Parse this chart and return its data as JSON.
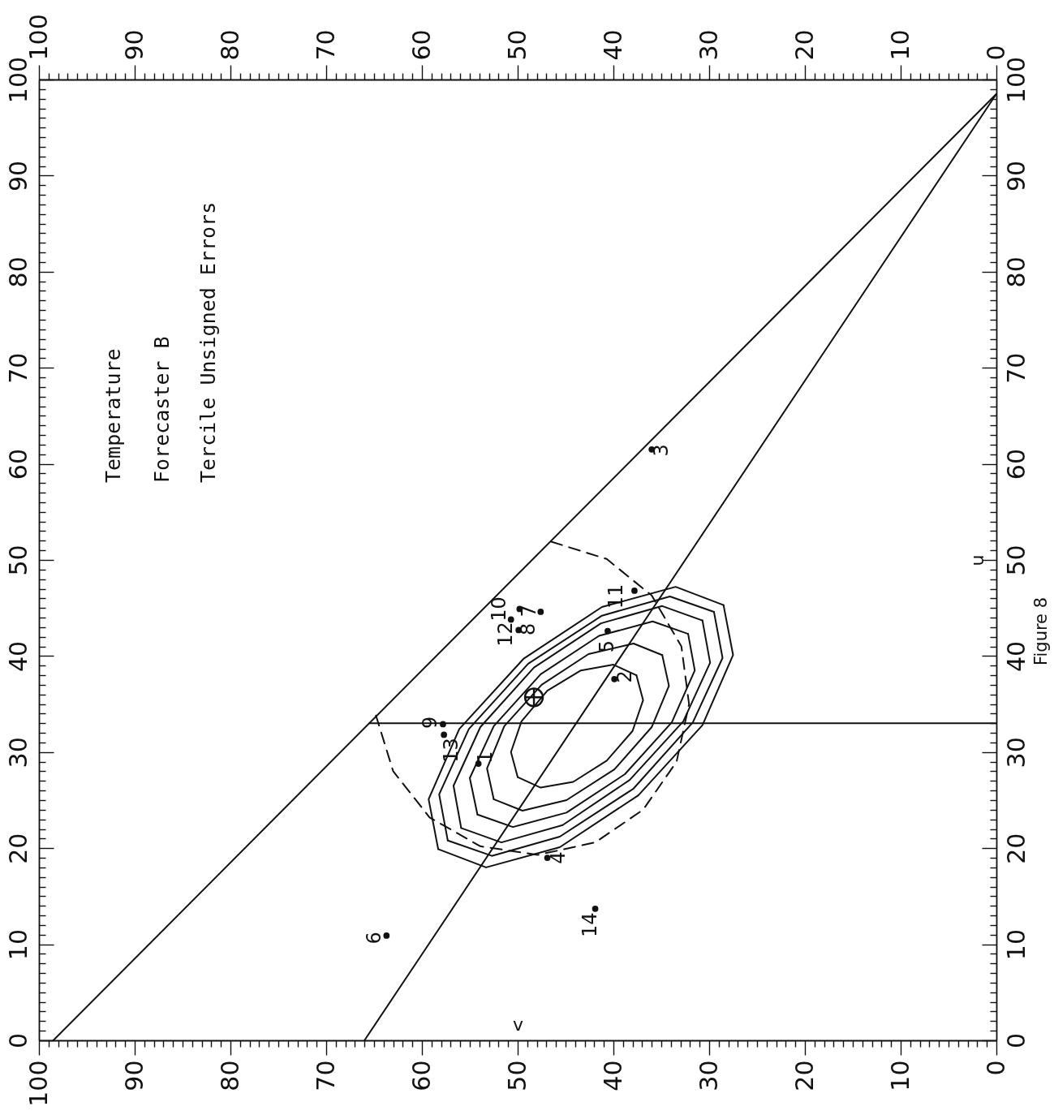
{
  "chart_data": {
    "type": "scatter",
    "title": "Temperature",
    "subtitle": "Forecaster B",
    "xlabel": "v",
    "y2label": "u",
    "annotations": [
      "Tercile Unsigned Errors",
      "Figure 8",
      {
        "text": "1",
        "x": 54.1,
        "y": 28.8
      },
      {
        "text": "2",
        "x": 39.9,
        "y": 37.6
      },
      {
        "text": "3",
        "x": 36.0,
        "y": 61.5
      },
      {
        "text": "4",
        "x": 46.9,
        "y": 19.0
      },
      {
        "text": "5",
        "x": 40.6,
        "y": 42.6
      },
      {
        "text": "6",
        "x": 63.7,
        "y": 10.9
      },
      {
        "text": "7",
        "x": 47.6,
        "y": 44.6
      },
      {
        "text": "8",
        "x": 49.9,
        "y": 42.7
      },
      {
        "text": "9",
        "x": 57.8,
        "y": 32.9
      },
      {
        "text": "10",
        "x": 49.8,
        "y": 44.9
      },
      {
        "text": "11",
        "x": 37.8,
        "y": 46.8
      },
      {
        "text": "12",
        "x": 50.7,
        "y": 43.8
      },
      {
        "text": "13",
        "x": 57.7,
        "y": 31.8
      },
      {
        "text": "14",
        "x": 41.9,
        "y": 13.7
      }
    ],
    "xlim": [
      100,
      0
    ],
    "ylim": [
      0,
      100
    ],
    "x2lim": [
      100,
      0
    ],
    "y2lim": [
      0,
      100
    ],
    "xticks": [
      0,
      {
        "value": 1,
        "label": null
      },
      {
        "value": 2,
        "label": null
      },
      {
        "value": 3,
        "label": null
      },
      {
        "value": 4,
        "label": null
      },
      {
        "value": 5,
        "label": null
      },
      {
        "value": 6,
        "label": null
      },
      {
        "value": 7,
        "label": null
      },
      {
        "value": 8,
        "label": null
      },
      {
        "value": 9,
        "label": null
      },
      10,
      {
        "value": 11,
        "label": null
      },
      {
        "value": 12,
        "label": null
      },
      {
        "value": 13,
        "label": null
      },
      {
        "value": 14,
        "label": null
      },
      {
        "value": 15,
        "label": null
      },
      {
        "value": 16,
        "label": null
      },
      {
        "value": 17,
        "label": null
      },
      {
        "value": 18,
        "label": null
      },
      {
        "value": 19,
        "label": null
      },
      20,
      {
        "value": 21,
        "label": null
      },
      {
        "value": 22,
        "label": null
      },
      {
        "value": 23,
        "label": null
      },
      {
        "value": 24,
        "label": null
      },
      {
        "value": 25,
        "label": null
      },
      {
        "value": 26,
        "label": null
      },
      {
        "value": 27,
        "label": null
      },
      {
        "value": 28,
        "label": null
      },
      {
        "value": 29,
        "label": null
      },
      30,
      {
        "value": 31,
        "label": null
      },
      {
        "value": 32,
        "label": null
      },
      {
        "value": 33,
        "label": null
      },
      {
        "value": 34,
        "label": null
      },
      {
        "value": 35,
        "label": null
      },
      {
        "value": 36,
        "label": null
      },
      {
        "value": 37,
        "label": null
      },
      {
        "value": 38,
        "label": null
      },
      {
        "value": 39,
        "label": null
      },
      40,
      {
        "value": 41,
        "label": null
      },
      {
        "value": 42,
        "label": null
      },
      {
        "value": 43,
        "label": null
      },
      {
        "value": 44,
        "label": null
      },
      {
        "value": 45,
        "label": null
      },
      {
        "value": 46,
        "label": null
      },
      {
        "value": 47,
        "label": null
      },
      {
        "value": 48,
        "label": null
      },
      {
        "value": 49,
        "label": null
      },
      50,
      {
        "value": 51,
        "label": null
      },
      {
        "value": 52,
        "label": null
      },
      {
        "value": 53,
        "label": null
      },
      {
        "value": 54,
        "label": null
      },
      {
        "value": 55,
        "label": null
      },
      {
        "value": 56,
        "label": null
      },
      {
        "value": 57,
        "label": null
      },
      {
        "value": 58,
        "label": null
      },
      {
        "value": 59,
        "label": null
      },
      60,
      {
        "value": 61,
        "label": null
      },
      {
        "value": 62,
        "label": null
      },
      {
        "value": 63,
        "label": null
      },
      {
        "value": 64,
        "label": null
      },
      {
        "value": 65,
        "label": null
      },
      {
        "value": 66,
        "label": null
      },
      {
        "value": 67,
        "label": null
      },
      {
        "value": 68,
        "label": null
      },
      {
        "value": 69,
        "label": null
      },
      70,
      {
        "value": 71,
        "label": null
      },
      {
        "value": 72,
        "label": null
      },
      {
        "value": 73,
        "label": null
      },
      {
        "value": 74,
        "label": null
      },
      {
        "value": 75,
        "label": null
      },
      {
        "value": 76,
        "label": null
      },
      {
        "value": 77,
        "label": null
      },
      {
        "value": 78,
        "label": null
      },
      {
        "value": 79,
        "label": null
      },
      80,
      {
        "value": 81,
        "label": null
      },
      {
        "value": 82,
        "label": null
      },
      {
        "value": 83,
        "label": null
      },
      {
        "value": 84,
        "label": null
      },
      {
        "value": 85,
        "label": null
      },
      {
        "value": 86,
        "label": null
      },
      {
        "value": 87,
        "label": null
      },
      {
        "value": 88,
        "label": null
      },
      {
        "value": 89,
        "label": null
      },
      90,
      {
        "value": 91,
        "label": null
      },
      {
        "value": 92,
        "label": null
      },
      {
        "value": 93,
        "label": null
      },
      {
        "value": 94,
        "label": null
      },
      {
        "value": 95,
        "label": null
      },
      {
        "value": 96,
        "label": null
      },
      {
        "value": 97,
        "label": null
      },
      {
        "value": 98,
        "label": null
      },
      {
        "value": 99,
        "label": null
      },
      100
    ],
    "yticks": [
      0,
      {
        "value": 1,
        "label": null
      },
      {
        "value": 2,
        "label": null
      },
      {
        "value": 3,
        "label": null
      },
      {
        "value": 4,
        "label": null
      },
      {
        "value": 5,
        "label": null
      },
      {
        "value": 6,
        "label": null
      },
      {
        "value": 7,
        "label": null
      },
      {
        "value": 8,
        "label": null
      },
      {
        "value": 9,
        "label": null
      },
      10,
      {
        "value": 11,
        "label": null
      },
      {
        "value": 12,
        "label": null
      },
      {
        "value": 13,
        "label": null
      },
      {
        "value": 14,
        "label": null
      },
      {
        "value": 15,
        "label": null
      },
      {
        "value": 16,
        "label": null
      },
      {
        "value": 17,
        "label": null
      },
      {
        "value": 18,
        "label": null
      },
      {
        "value": 19,
        "label": null
      },
      20,
      {
        "value": 21,
        "label": null
      },
      {
        "value": 22,
        "label": null
      },
      {
        "value": 23,
        "label": null
      },
      {
        "value": 24,
        "label": null
      },
      {
        "value": 25,
        "label": null
      },
      {
        "value": 26,
        "label": null
      },
      {
        "value": 27,
        "label": null
      },
      {
        "value": 28,
        "label": null
      },
      {
        "value": 29,
        "label": null
      },
      30,
      {
        "value": 31,
        "label": null
      },
      {
        "value": 32,
        "label": null
      },
      {
        "value": 33,
        "label": null
      },
      {
        "value": 34,
        "label": null
      },
      {
        "value": 35,
        "label": null
      },
      {
        "value": 36,
        "label": null
      },
      {
        "value": 37,
        "label": null
      },
      {
        "value": 38,
        "label": null
      },
      {
        "value": 39,
        "label": null
      },
      40,
      {
        "value": 41,
        "label": null
      },
      {
        "value": 42,
        "label": null
      },
      {
        "value": 43,
        "label": null
      },
      {
        "value": 44,
        "label": null
      },
      {
        "value": 45,
        "label": null
      },
      {
        "value": 46,
        "label": null
      },
      {
        "value": 47,
        "label": null
      },
      {
        "value": 48,
        "label": null
      },
      {
        "value": 49,
        "label": null
      },
      50,
      {
        "value": 51,
        "label": null
      },
      {
        "value": 52,
        "label": null
      },
      {
        "value": 53,
        "label": null
      },
      {
        "value": 54,
        "label": null
      },
      {
        "value": 55,
        "label": null
      },
      {
        "value": 56,
        "label": null
      },
      {
        "value": 57,
        "label": null
      },
      {
        "value": 58,
        "label": null
      },
      {
        "value": 59,
        "label": null
      },
      60,
      {
        "value": 61,
        "label": null
      },
      {
        "value": 62,
        "label": null
      },
      {
        "value": 63,
        "label": null
      },
      {
        "value": 64,
        "label": null
      },
      {
        "value": 65,
        "label": null
      },
      {
        "value": 66,
        "label": null
      },
      {
        "value": 67,
        "label": null
      },
      {
        "value": 68,
        "label": null
      },
      {
        "value": 69,
        "label": null
      },
      70,
      {
        "value": 71,
        "label": null
      },
      {
        "value": 72,
        "label": null
      },
      {
        "value": 73,
        "label": null
      },
      {
        "value": 74,
        "label": null
      },
      {
        "value": 75,
        "label": null
      },
      {
        "value": 76,
        "label": null
      },
      {
        "value": 77,
        "label": null
      },
      {
        "value": 78,
        "label": null
      },
      {
        "value": 79,
        "label": null
      },
      80,
      {
        "value": 81,
        "label": null
      },
      {
        "value": 82,
        "label": null
      },
      {
        "value": 83,
        "label": null
      },
      {
        "value": 84,
        "label": null
      },
      {
        "value": 85,
        "label": null
      },
      {
        "value": 86,
        "label": null
      },
      {
        "value": 87,
        "label": null
      },
      {
        "value": 88,
        "label": null
      },
      {
        "value": 89,
        "label": null
      },
      90,
      {
        "value": 91,
        "label": null
      },
      {
        "value": 92,
        "label": null
      },
      {
        "value": 93,
        "label": null
      },
      {
        "value": 94,
        "label": null
      },
      {
        "value": 95,
        "label": null
      },
      {
        "value": 96,
        "label": null
      },
      {
        "value": 97,
        "label": null
      },
      {
        "value": 98,
        "label": null
      },
      {
        "value": 99,
        "label": null
      },
      100
    ],
    "x2ticks": [
      0,
      {
        "value": 1,
        "label": null
      },
      {
        "value": 2,
        "label": null
      },
      {
        "value": 3,
        "label": null
      },
      {
        "value": 4,
        "label": null
      },
      {
        "value": 5,
        "label": null
      },
      {
        "value": 6,
        "label": null
      },
      {
        "value": 7,
        "label": null
      },
      {
        "value": 8,
        "label": null
      },
      {
        "value": 9,
        "label": null
      },
      10,
      {
        "value": 11,
        "label": null
      },
      {
        "value": 12,
        "label": null
      },
      {
        "value": 13,
        "label": null
      },
      {
        "value": 14,
        "label": null
      },
      {
        "value": 15,
        "label": null
      },
      {
        "value": 16,
        "label": null
      },
      {
        "value": 17,
        "label": null
      },
      {
        "value": 18,
        "label": null
      },
      {
        "value": 19,
        "label": null
      },
      20,
      {
        "value": 21,
        "label": null
      },
      {
        "value": 22,
        "label": null
      },
      {
        "value": 23,
        "label": null
      },
      {
        "value": 24,
        "label": null
      },
      {
        "value": 25,
        "label": null
      },
      {
        "value": 26,
        "label": null
      },
      {
        "value": 27,
        "label": null
      },
      {
        "value": 28,
        "label": null
      },
      {
        "value": 29,
        "label": null
      },
      30,
      {
        "value": 31,
        "label": null
      },
      {
        "value": 32,
        "label": null
      },
      {
        "value": 33,
        "label": null
      },
      {
        "value": 34,
        "label": null
      },
      {
        "value": 35,
        "label": null
      },
      {
        "value": 36,
        "label": null
      },
      {
        "value": 37,
        "label": null
      },
      {
        "value": 38,
        "label": null
      },
      {
        "value": 39,
        "label": null
      },
      40,
      {
        "value": 41,
        "label": null
      },
      {
        "value": 42,
        "label": null
      },
      {
        "value": 43,
        "label": null
      },
      {
        "value": 44,
        "label": null
      },
      {
        "value": 45,
        "label": null
      },
      {
        "value": 46,
        "label": null
      },
      {
        "value": 47,
        "label": null
      },
      {
        "value": 48,
        "label": null
      },
      {
        "value": 49,
        "label": null
      },
      50,
      {
        "value": 51,
        "label": null
      },
      {
        "value": 52,
        "label": null
      },
      {
        "value": 53,
        "label": null
      },
      {
        "value": 54,
        "label": null
      },
      {
        "value": 55,
        "label": null
      },
      {
        "value": 56,
        "label": null
      },
      {
        "value": 57,
        "label": null
      },
      {
        "value": 58,
        "label": null
      },
      {
        "value": 59,
        "label": null
      },
      60,
      {
        "value": 61,
        "label": null
      },
      {
        "value": 62,
        "label": null
      },
      {
        "value": 63,
        "label": null
      },
      {
        "value": 64,
        "label": null
      },
      {
        "value": 65,
        "label": null
      },
      {
        "value": 66,
        "label": null
      },
      {
        "value": 67,
        "label": null
      },
      {
        "value": 68,
        "label": null
      },
      {
        "value": 69,
        "label": null
      },
      70,
      {
        "value": 71,
        "label": null
      },
      {
        "value": 72,
        "label": null
      },
      {
        "value": 73,
        "label": null
      },
      {
        "value": 74,
        "label": null
      },
      {
        "value": 75,
        "label": null
      },
      {
        "value": 76,
        "label": null
      },
      {
        "value": 77,
        "label": null
      },
      {
        "value": 78,
        "label": null
      },
      {
        "value": 79,
        "label": null
      },
      80,
      {
        "value": 81,
        "label": null
      },
      {
        "value": 82,
        "label": null
      },
      {
        "value": 83,
        "label": null
      },
      {
        "value": 84,
        "label": null
      },
      {
        "value": 85,
        "label": null
      },
      {
        "value": 86,
        "label": null
      },
      {
        "value": 87,
        "label": null
      },
      {
        "value": 88,
        "label": null
      },
      {
        "value": 89,
        "label": null
      },
      90,
      {
        "value": 91,
        "label": null
      },
      {
        "value": 92,
        "label": null
      },
      {
        "value": 93,
        "label": null
      },
      {
        "value": 94,
        "label": null
      },
      {
        "value": 95,
        "label": null
      },
      {
        "value": 96,
        "label": null
      },
      {
        "value": 97,
        "label": null
      },
      {
        "value": 98,
        "label": null
      },
      {
        "value": 99,
        "label": null
      },
      100
    ],
    "y2ticks": [
      0,
      {
        "value": 1,
        "label": null
      },
      {
        "value": 2,
        "label": null
      },
      {
        "value": 3,
        "label": null
      },
      {
        "value": 4,
        "label": null
      },
      {
        "value": 5,
        "label": null
      },
      {
        "value": 6,
        "label": null
      },
      {
        "value": 7,
        "label": null
      },
      {
        "value": 8,
        "label": null
      },
      {
        "value": 9,
        "label": null
      },
      10,
      {
        "value": 11,
        "label": null
      },
      {
        "value": 12,
        "label": null
      },
      {
        "value": 13,
        "label": null
      },
      {
        "value": 14,
        "label": null
      },
      {
        "value": 15,
        "label": null
      },
      {
        "value": 16,
        "label": null
      },
      {
        "value": 17,
        "label": null
      },
      {
        "value": 18,
        "label": null
      },
      {
        "value": 19,
        "label": null
      },
      20,
      {
        "value": 21,
        "label": null
      },
      {
        "value": 22,
        "label": null
      },
      {
        "value": 23,
        "label": null
      },
      {
        "value": 24,
        "label": null
      },
      {
        "value": 25,
        "label": null
      },
      {
        "value": 26,
        "label": null
      },
      {
        "value": 27,
        "label": null
      },
      {
        "value": 28,
        "label": null
      },
      {
        "value": 29,
        "label": null
      },
      30,
      {
        "value": 31,
        "label": null
      },
      {
        "value": 32,
        "label": null
      },
      {
        "value": 33,
        "label": null
      },
      {
        "value": 34,
        "label": null
      },
      {
        "value": 35,
        "label": null
      },
      {
        "value": 36,
        "label": null
      },
      {
        "value": 37,
        "label": null
      },
      {
        "value": 38,
        "label": null
      },
      {
        "value": 39,
        "label": null
      },
      40,
      {
        "value": 41,
        "label": null
      },
      {
        "value": 42,
        "label": null
      },
      {
        "value": 43,
        "label": null
      },
      {
        "value": 44,
        "label": null
      },
      {
        "value": 45,
        "label": null
      },
      {
        "value": 46,
        "label": null
      },
      {
        "value": 47,
        "label": null
      },
      {
        "value": 48,
        "label": null
      },
      {
        "value": 49,
        "label": null
      },
      50,
      {
        "value": 51,
        "label": null
      },
      {
        "value": 52,
        "label": null
      },
      {
        "value": 53,
        "label": null
      },
      {
        "value": 54,
        "label": null
      },
      {
        "value": 55,
        "label": null
      },
      {
        "value": 56,
        "label": null
      },
      {
        "value": 57,
        "label": null
      },
      {
        "value": 58,
        "label": null
      },
      {
        "value": 59,
        "label": null
      },
      60,
      {
        "value": 61,
        "label": null
      },
      {
        "value": 62,
        "label": null
      },
      {
        "value": 63,
        "label": null
      },
      {
        "value": 64,
        "label": null
      },
      {
        "value": 65,
        "label": null
      },
      {
        "value": 66,
        "label": null
      },
      {
        "value": 67,
        "label": null
      },
      {
        "value": 68,
        "label": null
      },
      {
        "value": 69,
        "label": null
      },
      70,
      {
        "value": 71,
        "label": null
      },
      {
        "value": 72,
        "label": null
      },
      {
        "value": 73,
        "label": null
      },
      {
        "value": 74,
        "label": null
      },
      {
        "value": 75,
        "label": null
      },
      {
        "value": 76,
        "label": null
      },
      {
        "value": 77,
        "label": null
      },
      {
        "value": 78,
        "label": null
      },
      {
        "value": 79,
        "label": null
      },
      80,
      {
        "value": 81,
        "label": null
      },
      {
        "value": 82,
        "label": null
      },
      {
        "value": 83,
        "label": null
      },
      {
        "value": 84,
        "label": null
      },
      {
        "value": 85,
        "label": null
      },
      {
        "value": 86,
        "label": null
      },
      {
        "value": 87,
        "label": null
      },
      {
        "value": 88,
        "label": null
      },
      {
        "value": 89,
        "label": null
      },
      90,
      {
        "value": 91,
        "label": null
      },
      {
        "value": 92,
        "label": null
      },
      {
        "value": 93,
        "label": null
      },
      {
        "value": 94,
        "label": null
      },
      {
        "value": 95,
        "label": null
      },
      {
        "value": 96,
        "label": null
      },
      {
        "value": 97,
        "label": null
      },
      {
        "value": 98,
        "label": null
      },
      {
        "value": 99,
        "label": null
      },
      100
    ],
    "series": [
      {
        "type": "line",
        "color": "#111111",
        "line_style": "solid",
        "x": [
          98.5,
          0
        ],
        "values": [
          0,
          98.5
        ]
      },
      {
        "type": "line",
        "color": "#111111",
        "line_style": "solid",
        "x": [
          66,
          0
        ],
        "values": [
          0,
          98.5
        ]
      },
      {
        "type": "line",
        "color": "#111111",
        "line_style": "solid",
        "x": [
          65.5,
          0
        ],
        "values": [
          33,
          33
        ]
      },
      {
        "type": "line",
        "color": "#111111",
        "line_style": "solid",
        "x": [
          37.6,
          40.0,
          43.4,
          46.9,
          49.6,
          50.7,
          50.0
        ],
        "values": [
          38.0,
          39.1,
          38.5,
          36.4,
          33.2,
          30.0,
          27.4
        ]
      },
      {
        "type": "line",
        "color": "#111111",
        "line_style": "solid",
        "x": [
          50.0,
          47.6,
          44.2,
          40.7,
          38.0,
          36.9,
          37.6
        ],
        "values": [
          27.4,
          26.3,
          26.9,
          29.1,
          32.2,
          35.4,
          38.0
        ]
      },
      {
        "type": "line",
        "color": "#111111",
        "line_style": "solid",
        "x": [
          34.9,
          37.9,
          42.6,
          47.5,
          51.4,
          53.2,
          52.5
        ],
        "values": [
          40.1,
          41.3,
          40.2,
          37.0,
          32.7,
          28.3,
          25.1
        ]
      },
      {
        "type": "line",
        "color": "#111111",
        "line_style": "solid",
        "x": [
          52.5,
          49.5,
          44.9,
          39.9,
          36.0,
          34.2,
          34.9
        ],
        "values": [
          25.1,
          23.9,
          25.0,
          28.2,
          32.6,
          36.9,
          40.1
        ]
      },
      {
        "type": "line",
        "color": "#111111",
        "line_style": "solid",
        "x": [
          32.2,
          35.9,
          41.5,
          47.6,
          52.5,
          55.0,
          54.2
        ],
        "values": [
          42.3,
          43.6,
          42.1,
          38.1,
          32.7,
          27.3,
          23.5
        ]
      },
      {
        "type": "line",
        "color": "#111111",
        "line_style": "solid",
        "x": [
          54.2,
          50.5,
          44.9,
          38.8,
          33.9,
          31.5,
          32.2
        ],
        "values": [
          23.5,
          22.2,
          23.7,
          27.7,
          33.1,
          38.5,
          42.3
        ]
      },
      {
        "type": "line",
        "color": "#111111",
        "line_style": "solid",
        "x": [
          30.7,
          34.9,
          41.3,
          48.3,
          53.9,
          56.7,
          55.9
        ],
        "values": [
          43.7,
          45.2,
          43.4,
          38.8,
          32.6,
          26.5,
          22.1
        ]
      },
      {
        "type": "line",
        "color": "#111111",
        "line_style": "solid",
        "x": [
          55.9,
          51.7,
          45.3,
          38.3,
          32.7,
          29.9,
          30.7
        ],
        "values": [
          22.1,
          20.6,
          22.4,
          27.1,
          33.2,
          39.3,
          43.7
        ]
      },
      {
        "type": "line",
        "color": "#111111",
        "line_style": "solid",
        "x": [
          29.5,
          34.1,
          41.2,
          48.9,
          55.1,
          58.2,
          57.3
        ],
        "values": [
          44.6,
          46.2,
          44.2,
          39.2,
          32.4,
          25.6,
          20.8
        ]
      },
      {
        "type": "line",
        "color": "#111111",
        "line_style": "solid",
        "x": [
          57.3,
          52.7,
          45.6,
          37.9,
          31.7,
          28.6,
          29.5
        ],
        "values": [
          20.8,
          19.2,
          21.2,
          26.2,
          33.1,
          39.8,
          44.6
        ]
      },
      {
        "type": "line",
        "color": "#111111",
        "line_style": "solid",
        "x": [
          28.5,
          33.5,
          41.2,
          49.4,
          56.1,
          59.3,
          58.3
        ],
        "values": [
          45.3,
          47.2,
          45.1,
          39.7,
          32.4,
          25.1,
          19.9
        ]
      },
      {
        "type": "line",
        "color": "#111111",
        "line_style": "solid",
        "x": [
          58.3,
          53.3,
          45.6,
          37.4,
          30.7,
          27.5,
          28.5
        ],
        "values": [
          19.9,
          18.0,
          20.1,
          25.5,
          32.8,
          40.1,
          45.3
        ]
      },
      {
        "type": "line",
        "color": "#111111",
        "line_style": "dashed",
        "x": [
          46.5,
          40.7,
          36.0,
          32.9,
          32.1,
          33.4,
          36.9,
          41.9,
          47.9,
          53.9,
          59.2,
          63.0,
          64.8
        ],
        "values": [
          51.9,
          50.1,
          46.3,
          41.0,
          35.0,
          29.0,
          24.0,
          20.6,
          19.3,
          20.2,
          23.2,
          28.0,
          33.8
        ]
      },
      {
        "color": "#111111",
        "marker": "circle",
        "x": [
          54.1,
          39.9,
          36.0,
          46.9,
          40.6,
          63.7,
          47.6,
          49.9,
          57.8,
          49.8,
          37.8,
          50.7,
          57.7,
          41.9
        ],
        "values": [
          28.8,
          37.6,
          61.5,
          19.0,
          42.6,
          10.9,
          44.6,
          42.7,
          32.9,
          44.9,
          46.8,
          43.8,
          31.8,
          13.7
        ]
      },
      {
        "color": "#111111",
        "marker": "cross",
        "x": [
          48.3
        ],
        "values": [
          35.7
        ]
      }
    ]
  }
}
